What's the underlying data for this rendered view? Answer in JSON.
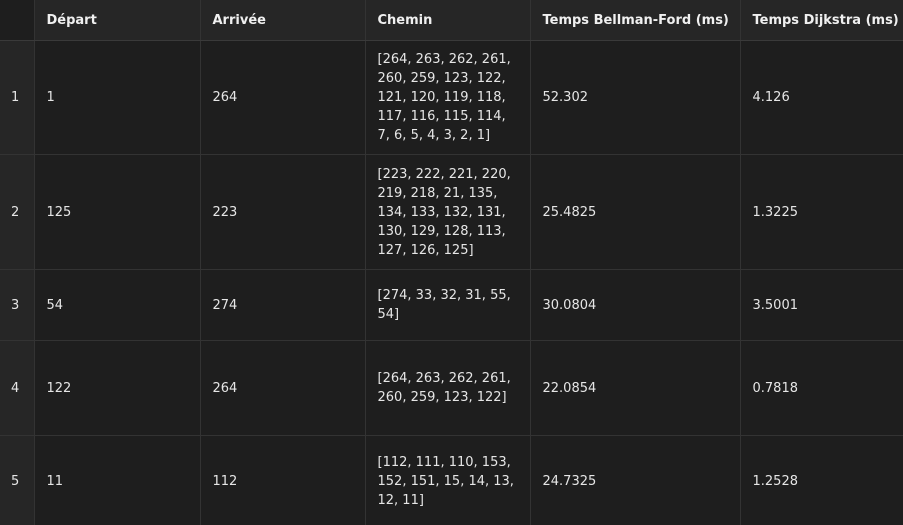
{
  "table": {
    "headers": {
      "depart": "Départ",
      "arrivee": "Arrivée",
      "chemin": "Chemin",
      "bellman_ford": "Temps Bellman-Ford (ms)",
      "dijkstra": "Temps Dijkstra (ms)"
    },
    "rows": [
      {
        "index": "1",
        "depart": "1",
        "arrivee": "264",
        "chemin": "[264, 263, 262, 261, 260, 259, 123, 122, 121, 120, 119, 118, 117, 116, 115, 114, 7, 6, 5, 4, 3, 2, 1]",
        "bellman_ford": "52.302",
        "dijkstra": "4.126"
      },
      {
        "index": "2",
        "depart": "125",
        "arrivee": "223",
        "chemin": "[223, 222, 221, 220, 219, 218, 21, 135, 134, 133, 132, 131, 130, 129, 128, 113, 127, 126, 125]",
        "bellman_ford": "25.4825",
        "dijkstra": "1.3225"
      },
      {
        "index": "3",
        "depart": "54",
        "arrivee": "274",
        "chemin": "[274, 33, 32, 31, 55, 54]",
        "bellman_ford": "30.0804",
        "dijkstra": "3.5001"
      },
      {
        "index": "4",
        "depart": "122",
        "arrivee": "264",
        "chemin": "[264, 263, 262, 261, 260, 259, 123, 122]",
        "bellman_ford": "22.0854",
        "dijkstra": "0.7818"
      },
      {
        "index": "5",
        "depart": "11",
        "arrivee": "112",
        "chemin": "[112, 111, 110, 153, 152, 151, 15, 14, 13, 12, 11]",
        "bellman_ford": "24.7325",
        "dijkstra": "1.2528"
      }
    ]
  },
  "colors": {
    "background": "#1e1e1e",
    "header_background": "#262626",
    "text": "#e6e6e6",
    "grid_line": "#333333"
  }
}
